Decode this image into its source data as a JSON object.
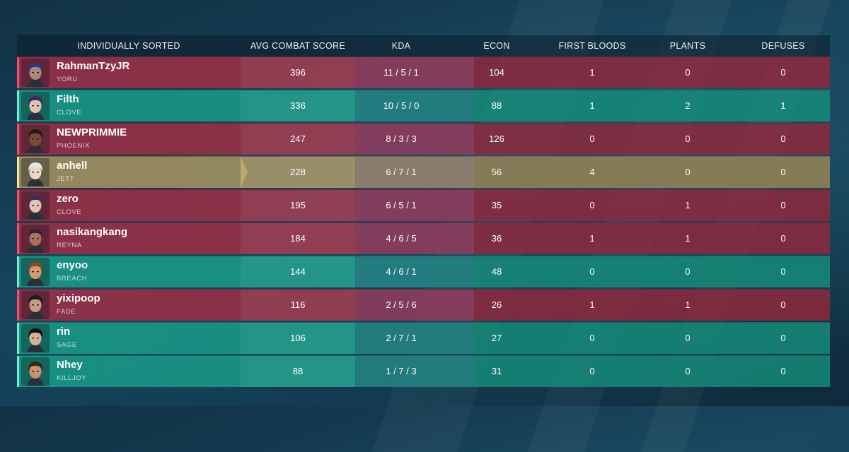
{
  "header": {
    "columns": [
      "INDIVIDUALLY SORTED",
      "AVG COMBAT SCORE",
      "KDA",
      "ECON",
      "FIRST BLOODS",
      "PLANTS",
      "DEFUSES"
    ]
  },
  "colors": {
    "red_team": "#a52e46",
    "teal_team": "#18a08a",
    "self_highlight": "#a89460"
  },
  "players": [
    {
      "name": "RahmanTzyJR",
      "agent": "YORU",
      "acs": "396",
      "kda": "11 / 5 / 1",
      "econ": "104",
      "first_bloods": "1",
      "plants": "0",
      "defuses": "0",
      "team": "red",
      "icon": "yoru-portrait-icon"
    },
    {
      "name": "Filth",
      "agent": "CLOVE",
      "acs": "336",
      "kda": "10 / 5 / 0",
      "econ": "88",
      "first_bloods": "1",
      "plants": "2",
      "defuses": "1",
      "team": "teal",
      "icon": "clove-portrait-icon"
    },
    {
      "name": "NEWPRIMMIE",
      "agent": "PHOENIX",
      "acs": "247",
      "kda": "8 / 3 / 3",
      "econ": "126",
      "first_bloods": "0",
      "plants": "0",
      "defuses": "0",
      "team": "red",
      "icon": "phoenix-portrait-icon"
    },
    {
      "name": "anhell",
      "agent": "JETT",
      "acs": "228",
      "kda": "6 / 7 / 1",
      "econ": "56",
      "first_bloods": "4",
      "plants": "0",
      "defuses": "0",
      "team": "self",
      "icon": "jett-portrait-icon"
    },
    {
      "name": "zero",
      "agent": "CLOVE",
      "acs": "195",
      "kda": "6 / 5 / 1",
      "econ": "35",
      "first_bloods": "0",
      "plants": "1",
      "defuses": "0",
      "team": "red",
      "icon": "clove-portrait-icon"
    },
    {
      "name": "nasikangkang",
      "agent": "REYNA",
      "acs": "184",
      "kda": "4 / 6 / 5",
      "econ": "36",
      "first_bloods": "1",
      "plants": "1",
      "defuses": "0",
      "team": "red",
      "icon": "reyna-portrait-icon"
    },
    {
      "name": "enyoo",
      "agent": "BREACH",
      "acs": "144",
      "kda": "4 / 6 / 1",
      "econ": "48",
      "first_bloods": "0",
      "plants": "0",
      "defuses": "0",
      "team": "teal",
      "icon": "breach-portrait-icon"
    },
    {
      "name": "yixipoop",
      "agent": "FADE",
      "acs": "116",
      "kda": "2 / 5 / 6",
      "econ": "26",
      "first_bloods": "1",
      "plants": "1",
      "defuses": "0",
      "team": "red",
      "icon": "fade-portrait-icon"
    },
    {
      "name": "rin",
      "agent": "SAGE",
      "acs": "106",
      "kda": "2 / 7 / 1",
      "econ": "27",
      "first_bloods": "0",
      "plants": "0",
      "defuses": "0",
      "team": "teal",
      "icon": "sage-portrait-icon"
    },
    {
      "name": "Nhey",
      "agent": "KILLJOY",
      "acs": "88",
      "kda": "1 / 7 / 3",
      "econ": "31",
      "first_bloods": "0",
      "plants": "0",
      "defuses": "0",
      "team": "teal",
      "icon": "killjoy-portrait-icon"
    }
  ]
}
